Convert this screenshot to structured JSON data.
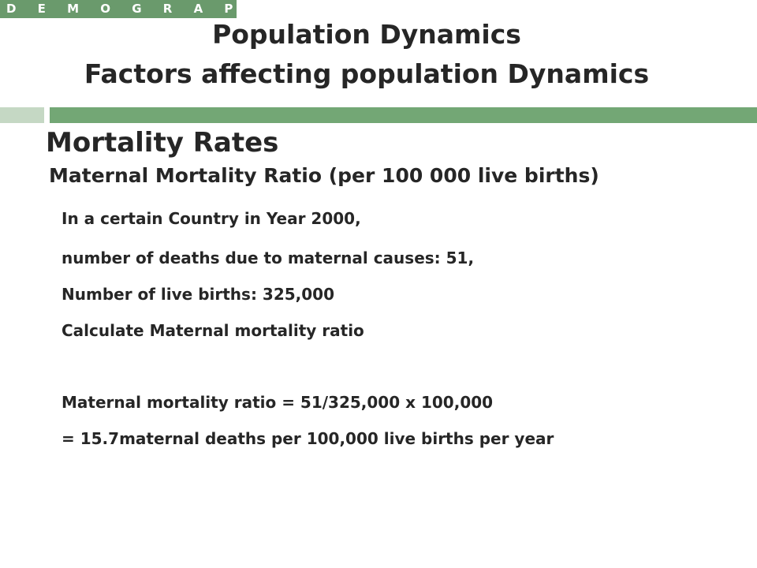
{
  "header": {
    "tag": "D E M O G R A P H Y",
    "title_line1": "Population Dynamics",
    "title_line2": "Factors affecting population Dynamics"
  },
  "content": {
    "heading": "Mortality Rates",
    "subheading": "Maternal Mortality Ratio (per 100 000 live births)",
    "lines": [
      "In a certain Country in Year 2000,",
      "number of deaths due to maternal causes: 51,",
      "Number of live births: 325,000",
      "Calculate Maternal mortality ratio",
      "Maternal mortality ratio = 51/325,000 x 100,000",
      "= 15.7maternal deaths per 100,000 live births per year"
    ]
  },
  "colors": {
    "accent_dark": "#73a775",
    "accent_light": "#c5d8c4",
    "tag_background": "#6a9a6c",
    "text": "#262626"
  }
}
